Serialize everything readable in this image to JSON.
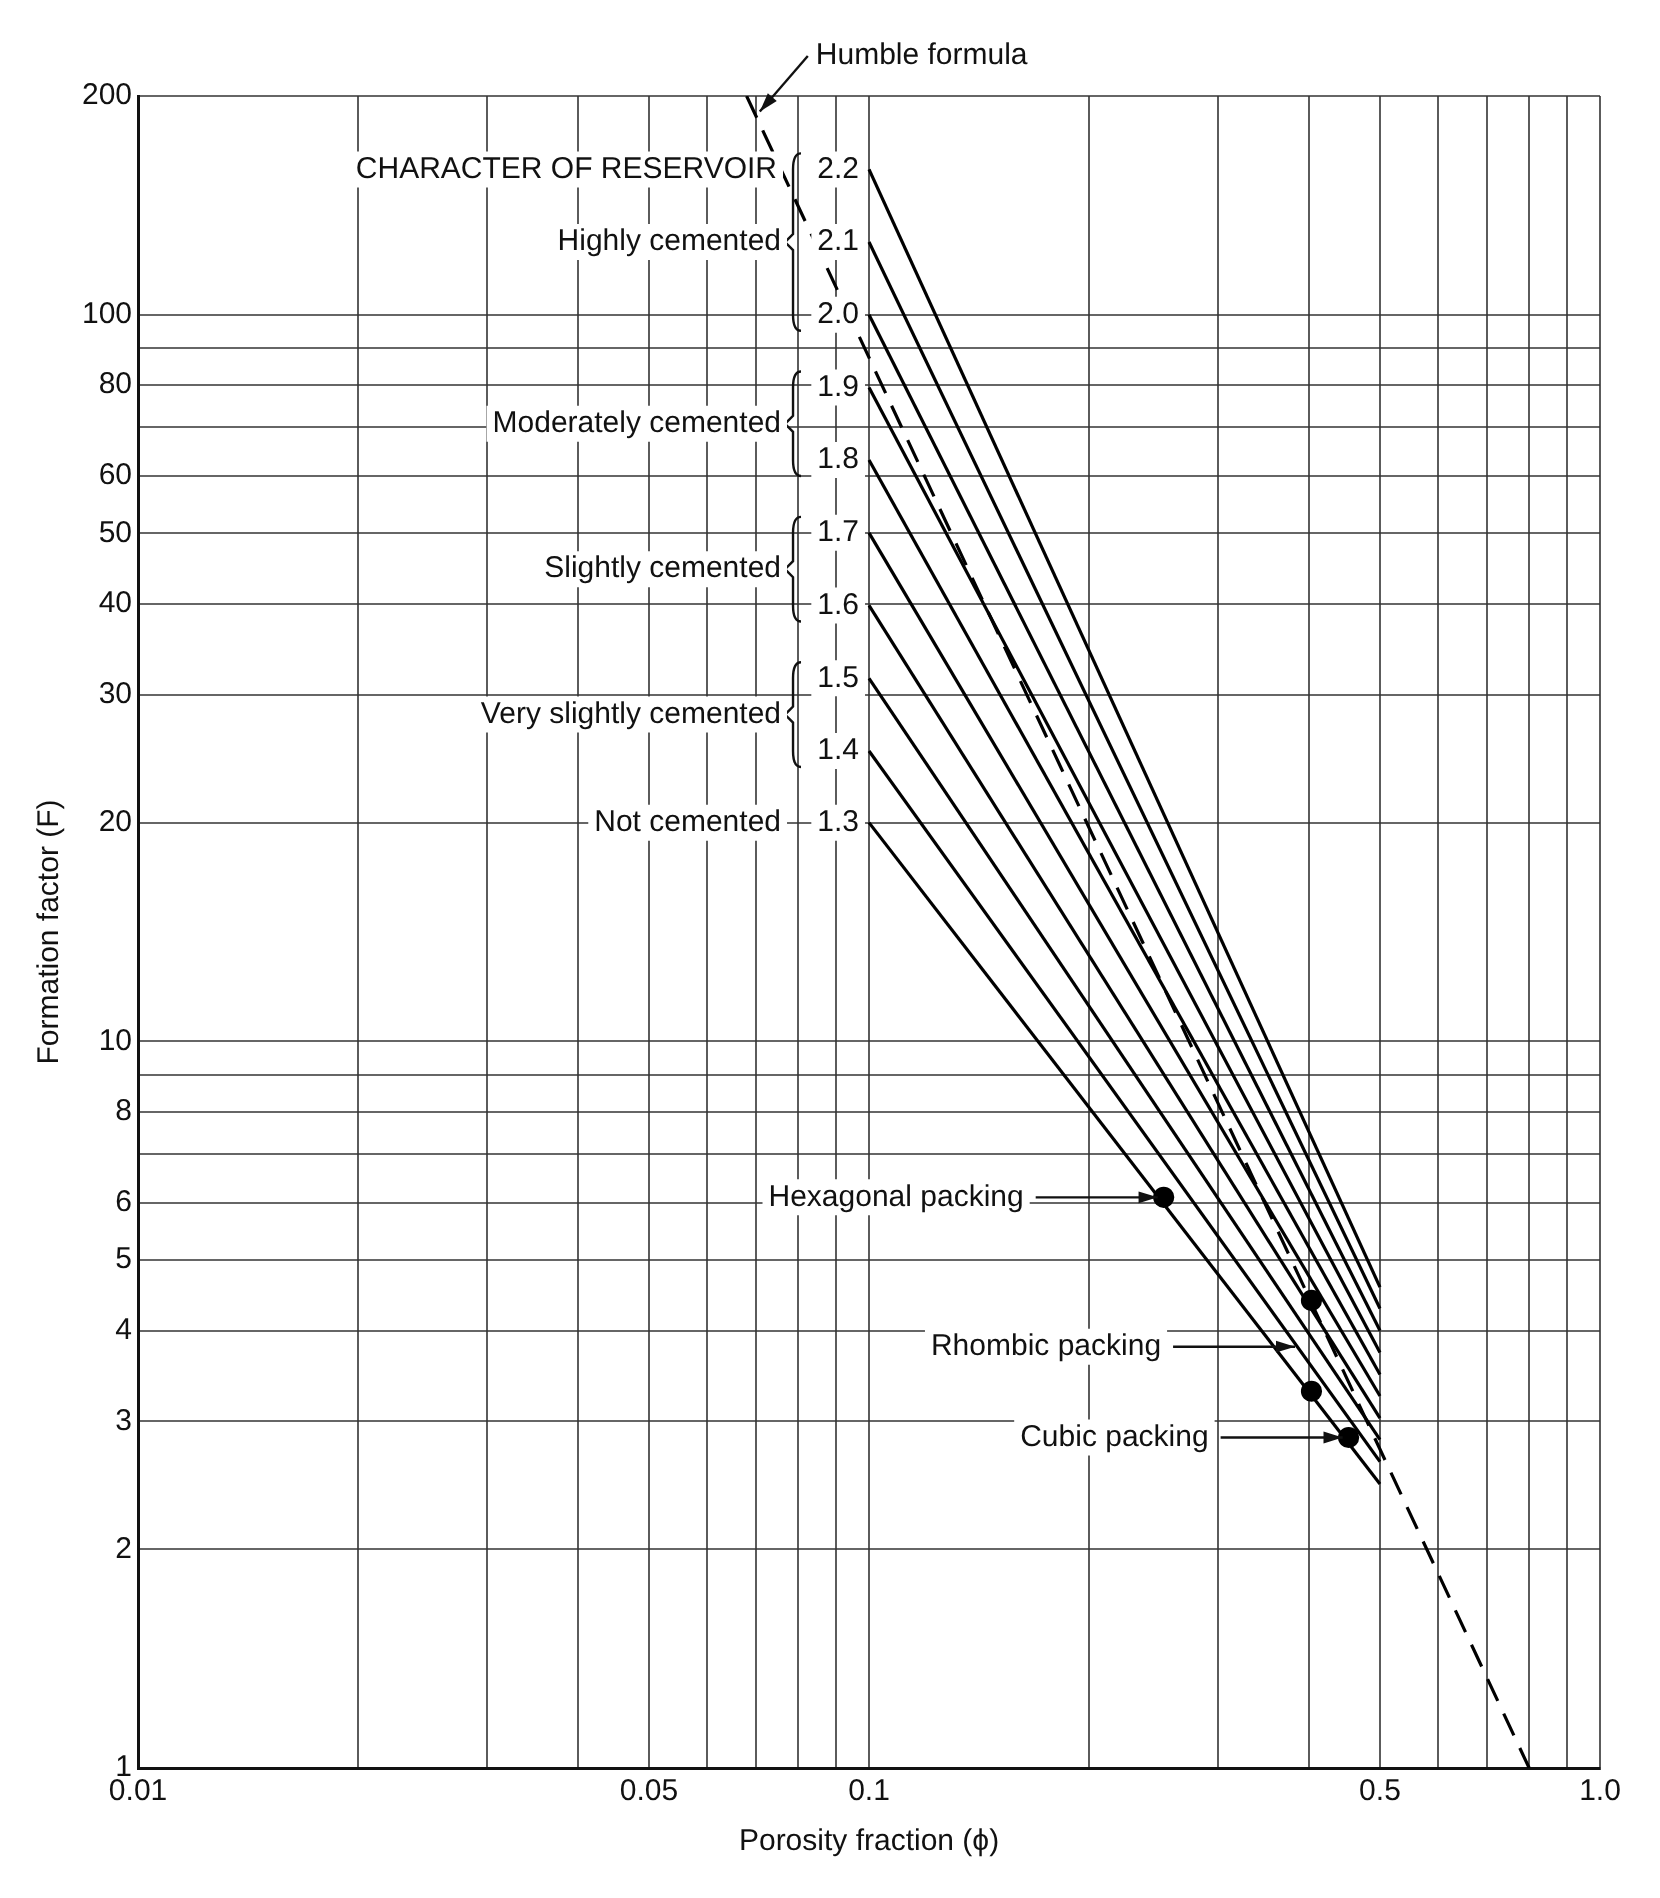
{
  "chart_data": {
    "type": "line",
    "xlabel": "Porosity fraction (ϕ)",
    "ylabel": "Formation factor (F)",
    "log": "xy",
    "grid": true,
    "xlim": [
      0.01,
      1
    ],
    "ylim": [
      1,
      200
    ],
    "xticks": [
      0.01,
      {
        "value": 0.02,
        "label": null
      },
      {
        "value": 0.03,
        "label": null
      },
      {
        "value": 0.04,
        "label": null
      },
      0.05,
      {
        "value": 0.06,
        "label": null
      },
      {
        "value": 0.07,
        "label": null
      },
      {
        "value": 0.08,
        "label": null
      },
      {
        "value": 0.09,
        "label": null
      },
      0.1,
      {
        "value": 0.2,
        "label": null
      },
      {
        "value": 0.3,
        "label": null
      },
      {
        "value": 0.4,
        "label": null
      },
      0.5,
      {
        "value": 0.6,
        "label": null
      },
      {
        "value": 0.7,
        "label": null
      },
      {
        "value": 0.8,
        "label": null
      },
      {
        "value": 0.9,
        "label": null
      },
      {
        "value": 1,
        "label": "1.0"
      }
    ],
    "yticks": [
      1,
      2,
      3,
      4,
      5,
      6,
      {
        "value": 7,
        "label": null
      },
      8,
      {
        "value": 9,
        "label": null
      },
      10,
      20,
      30,
      40,
      50,
      60,
      {
        "value": 70,
        "label": null
      },
      80,
      {
        "value": 90,
        "label": null
      },
      100,
      200
    ],
    "series": [
      {
        "name": "2.2",
        "color": "#000000",
        "marker": "none",
        "x": [
          0.1,
          0.5
        ],
        "values": [
          158.5,
          4.59
        ]
      },
      {
        "name": "2.1",
        "color": "#000000",
        "marker": "none",
        "x": [
          0.1,
          0.5
        ],
        "values": [
          125.9,
          4.29
        ]
      },
      {
        "name": "2.0",
        "color": "#000000",
        "marker": "none",
        "x": [
          0.1,
          0.5
        ],
        "values": [
          100,
          4
        ]
      },
      {
        "name": "1.9",
        "color": "#000000",
        "marker": "none",
        "x": [
          0.1,
          0.5
        ],
        "values": [
          79.4,
          3.73
        ]
      },
      {
        "name": "1.8",
        "color": "#000000",
        "marker": "none",
        "x": [
          0.1,
          0.5
        ],
        "values": [
          63.1,
          3.48
        ]
      },
      {
        "name": "1.7",
        "color": "#000000",
        "marker": "none",
        "x": [
          0.1,
          0.5
        ],
        "values": [
          50.1,
          3.25
        ]
      },
      {
        "name": "1.6",
        "color": "#000000",
        "marker": "none",
        "x": [
          0.1,
          0.5
        ],
        "values": [
          39.8,
          3.03
        ]
      },
      {
        "name": "1.5",
        "color": "#000000",
        "marker": "none",
        "x": [
          0.1,
          0.5
        ],
        "values": [
          31.6,
          2.83
        ]
      },
      {
        "name": "1.4",
        "color": "#000000",
        "marker": "none",
        "x": [
          0.1,
          0.5
        ],
        "values": [
          25.1,
          2.64
        ]
      },
      {
        "name": "1.3",
        "color": "#000000",
        "marker": "none",
        "x": [
          0.1,
          0.5
        ],
        "values": [
          20,
          2.46
        ]
      },
      {
        "color": "#000000",
        "marker": "none",
        "line_style": "dashed",
        "x": [
          0.068,
          0.8
        ],
        "values": [
          200,
          1
        ]
      },
      {
        "type": "scatter",
        "color": "#000000",
        "marker": "circle",
        "x": [
          0.253,
          0.403,
          0.403,
          0.453
        ],
        "values": [
          6.1,
          4.4,
          3.3,
          2.85
        ]
      }
    ],
    "annotations": [
      {
        "text": "Humble formula",
        "x": 0.07,
        "y": 188
      },
      "CHARACTER OF RESERVOIR",
      "Highly cemented",
      "Moderately cemented",
      "Slightly cemented",
      "Very slightly cemented",
      "Not cemented",
      {
        "text": "Hexagonal packing",
        "x": 0.253,
        "y": 6.1
      },
      {
        "text": "Rhombic packing",
        "x": 0.39,
        "y": 3.8
      },
      {
        "text": "Cubic packing",
        "x": 0.453,
        "y": 2.85
      }
    ]
  }
}
